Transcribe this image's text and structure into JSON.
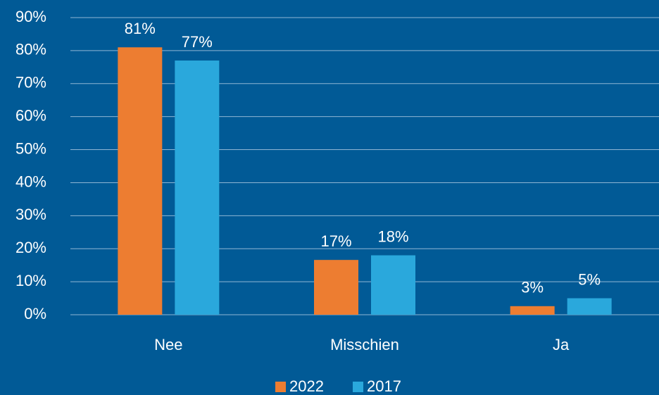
{
  "chart_data": {
    "type": "bar",
    "categories": [
      "Nee",
      "Misschien",
      "Ja"
    ],
    "series": [
      {
        "name": "2022",
        "color": "#ed7d31",
        "values": [
          81,
          16.6,
          2.6
        ],
        "value_labels": [
          "81%",
          "17%",
          "3%"
        ]
      },
      {
        "name": "2017",
        "color": "#2aa8dc",
        "values": [
          77,
          18,
          5
        ],
        "value_labels": [
          "77%",
          "18%",
          "5%"
        ]
      }
    ],
    "ylim": [
      0,
      90
    ],
    "yticks": [
      {
        "value": 0,
        "label": "0%"
      },
      {
        "value": 10,
        "label": "10%"
      },
      {
        "value": 20,
        "label": "20%"
      },
      {
        "value": 30,
        "label": "30%"
      },
      {
        "value": 40,
        "label": "40%"
      },
      {
        "value": 50,
        "label": "50%"
      },
      {
        "value": 60,
        "label": "60%"
      },
      {
        "value": 70,
        "label": "70%"
      },
      {
        "value": 80,
        "label": "80%"
      },
      {
        "value": 90,
        "label": "90%"
      }
    ],
    "grid": true,
    "legend": "bottom",
    "background": "#015a96"
  }
}
